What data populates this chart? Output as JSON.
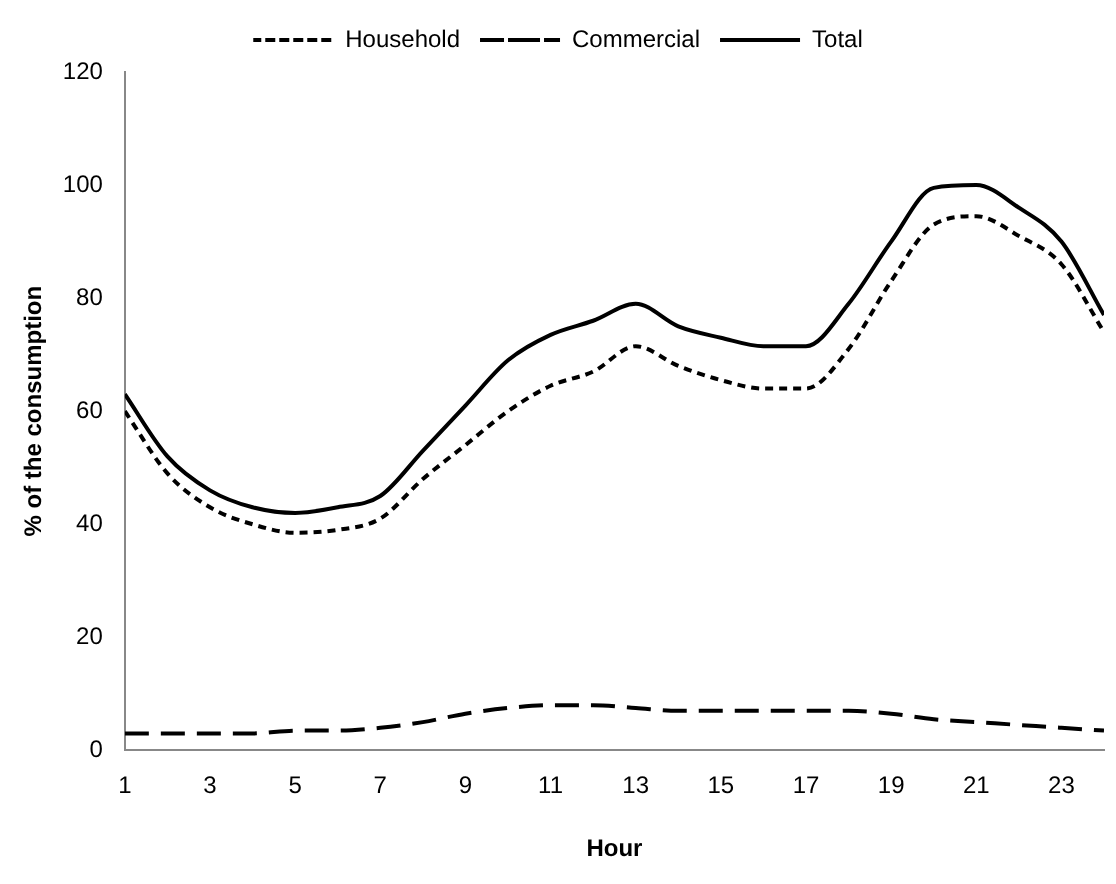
{
  "chart_data": {
    "type": "line",
    "xlabel": "Hour",
    "ylabel": "% of the consumption",
    "x": [
      1,
      2,
      3,
      4,
      5,
      6,
      7,
      8,
      9,
      10,
      11,
      12,
      13,
      14,
      15,
      16,
      17,
      18,
      19,
      20,
      21,
      22,
      23,
      24
    ],
    "xlim": [
      1,
      24
    ],
    "xticks": [
      1,
      3,
      5,
      7,
      9,
      11,
      13,
      15,
      17,
      19,
      21,
      23
    ],
    "ylim": [
      0,
      120
    ],
    "yticks": [
      0,
      20,
      40,
      60,
      80,
      100,
      120
    ],
    "grid": false,
    "legend": "top",
    "marker": "none",
    "series": [
      {
        "name": "Household",
        "color": "#000000",
        "line_style": "dotted",
        "values": [
          60,
          49,
          43,
          40,
          38.5,
          39,
          41,
          48,
          54,
          60,
          64.5,
          67,
          71.5,
          68,
          65.5,
          64,
          64,
          71,
          83,
          93,
          94.5,
          91,
          86,
          74
        ]
      },
      {
        "name": "Commercial",
        "color": "#000000",
        "line_style": "dashed",
        "values": [
          3,
          3,
          3,
          3,
          3.5,
          3.5,
          4,
          5,
          6.5,
          7.5,
          8,
          8,
          7.5,
          7,
          7,
          7,
          7,
          7,
          6.5,
          5.5,
          5,
          4.5,
          4,
          3.5
        ]
      },
      {
        "name": "Total",
        "color": "#000000",
        "line_style": "solid",
        "values": [
          63,
          52,
          46,
          43,
          42,
          43,
          45,
          53,
          61,
          69,
          73.5,
          76,
          79,
          75,
          73,
          71.5,
          71.5,
          79,
          90,
          99.5,
          100,
          96,
          90,
          77
        ]
      }
    ]
  }
}
